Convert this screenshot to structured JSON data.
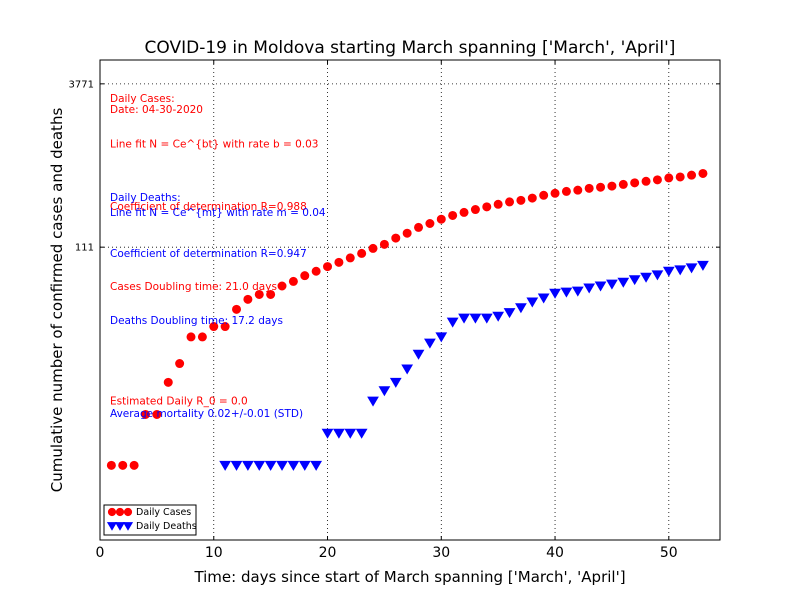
{
  "chart_data": {
    "type": "scatter",
    "title": "COVID-19 in Moldova starting March spanning ['March', 'April']",
    "xlabel": "Time: days since start of March spanning ['March', 'April']",
    "ylabel": "Cumulative number of confirmed cases and deaths",
    "xlim": [
      0,
      54.5
    ],
    "ylim_log10": [
      -0.7,
      3.8
    ],
    "log_scale_y": true,
    "x_ticks": [
      0,
      10,
      20,
      30,
      40,
      50
    ],
    "y_ticks": [
      {
        "value": 111,
        "label": "111"
      },
      {
        "value": 3771,
        "label": "3771"
      }
    ],
    "grid": "dotted at labeled ticks",
    "annotations_cases": [
      "Daily Cases:",
      "Date: 04-30-2020",
      "Line fit N = Ce^{bt} with rate b = 0.03",
      "Coefficient of determination R=0.988",
      "Cases Doubling time: 21.0 days",
      "Estimated Daily R_0 = 0.0"
    ],
    "annotations_deaths": [
      "Daily Deaths:",
      "Line fit N = Ce^{mt} with rate m = 0.04",
      "Coefficient of determination R=0.947",
      "Deaths Doubling time: 17.2 days",
      "Average mortality 0.02+/-0.01 (STD)"
    ],
    "legend_position": "lower-left",
    "series": [
      {
        "name": "Daily Cases",
        "color": "#ff0000",
        "marker": "circle",
        "x": [
          1,
          2,
          3,
          4,
          5,
          6,
          7,
          8,
          9,
          10,
          11,
          12,
          13,
          14,
          15,
          16,
          17,
          18,
          19,
          20,
          21,
          22,
          23,
          24,
          25,
          26,
          27,
          28,
          29,
          30,
          31,
          32,
          33,
          34,
          35,
          36,
          37,
          38,
          39,
          40,
          41,
          42,
          43,
          44,
          45,
          46,
          47,
          48,
          49,
          50,
          51,
          52,
          53
        ],
        "y": [
          1,
          1,
          1,
          3,
          3,
          6,
          9,
          16,
          16,
          20,
          20,
          29,
          36,
          40,
          40,
          48,
          53,
          60,
          66,
          73,
          80,
          88,
          97,
          108,
          118,
          135,
          150,
          170,
          185,
          203,
          220,
          235,
          250,
          265,
          280,
          295,
          305,
          320,
          340,
          355,
          370,
          380,
          395,
          405,
          415,
          430,
          445,
          460,
          475,
          495,
          505,
          525,
          545
        ]
      },
      {
        "name": "Daily Deaths",
        "color": "#0000ff",
        "marker": "triangle-down",
        "x": [
          11,
          12,
          13,
          14,
          15,
          16,
          17,
          18,
          19,
          20,
          21,
          22,
          23,
          24,
          25,
          26,
          27,
          28,
          29,
          30,
          31,
          32,
          33,
          34,
          35,
          36,
          37,
          38,
          39,
          40,
          41,
          42,
          43,
          44,
          45,
          46,
          47,
          48,
          49,
          50,
          51,
          52,
          53
        ],
        "y": [
          1,
          1,
          1,
          1,
          1,
          1,
          1,
          1,
          1,
          2,
          2,
          2,
          2,
          4,
          5,
          6,
          8,
          11,
          14,
          16,
          22,
          24,
          24,
          24,
          25,
          27,
          30,
          34,
          37,
          41,
          42,
          43,
          46,
          48,
          50,
          52,
          55,
          58,
          61,
          66,
          68,
          71,
          75
        ]
      }
    ]
  }
}
